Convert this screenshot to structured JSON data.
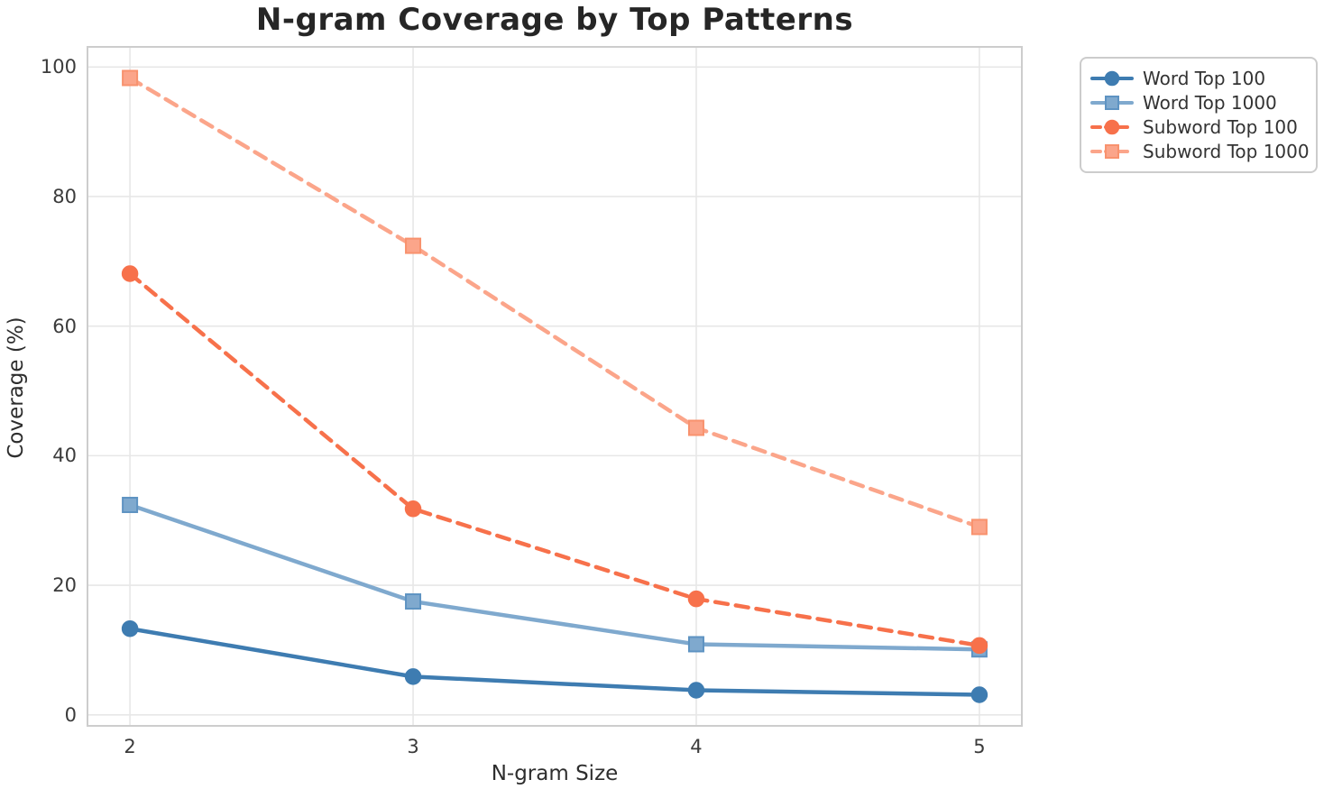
{
  "chart_data": {
    "type": "line",
    "title": "N-gram Coverage by Top Patterns",
    "xlabel": "N-gram Size",
    "ylabel": "Coverage (%)",
    "x": [
      2,
      3,
      4,
      5
    ],
    "xticks": [
      2,
      3,
      4,
      5
    ],
    "yticks": [
      0,
      20,
      40,
      60,
      80,
      100
    ],
    "xlim": [
      1.85,
      5.15
    ],
    "ylim": [
      -1.7,
      103.1
    ],
    "grid": true,
    "legend_position": "outside-top-right",
    "series": [
      {
        "name": "Word Top 100",
        "values": [
          13.3,
          5.9,
          3.8,
          3.1
        ],
        "color": "#3e7cb1",
        "edge_color": "#3e7cb1",
        "line_style": "solid",
        "marker": "circle"
      },
      {
        "name": "Word Top 1000",
        "values": [
          32.4,
          17.5,
          10.9,
          10.1
        ],
        "color": "#7fa9ce",
        "edge_color": "#5e93c2",
        "line_style": "solid",
        "marker": "square"
      },
      {
        "name": "Subword Top 100",
        "values": [
          68.1,
          31.8,
          17.9,
          10.7
        ],
        "color": "#f7714b",
        "edge_color": "#f7714b",
        "line_style": "dashed",
        "marker": "circle"
      },
      {
        "name": "Subword Top 1000",
        "values": [
          98.3,
          72.4,
          44.3,
          29.0
        ],
        "color": "#fba58a",
        "edge_color": "#f8926e",
        "line_style": "dashed",
        "marker": "square"
      }
    ],
    "colors": {
      "grid": "#e7e7e7",
      "spine": "#cdcdcd",
      "text": "#262626",
      "tick_text": "#3b3b3b"
    }
  }
}
